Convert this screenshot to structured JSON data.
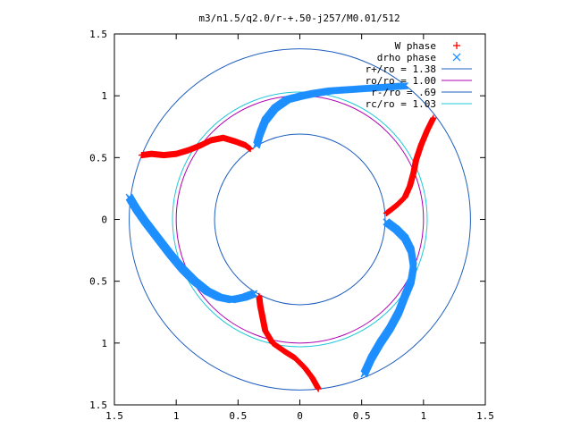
{
  "chart_data": {
    "type": "scatter",
    "title": "m3/n1.5/q2.0/r-+.50-j257/M0.01/512",
    "xlabel": "",
    "ylabel": "",
    "xlim": [
      -1.5,
      1.5
    ],
    "ylim": [
      -1.5,
      1.5
    ],
    "x_ticks": [
      -1.5,
      -1,
      -0.5,
      0,
      0.5,
      1,
      1.5
    ],
    "y_ticks": [
      -1.5,
      -1,
      -0.5,
      0,
      0.5,
      1,
      1.5
    ],
    "x_tick_labels": [
      "1.5",
      "1",
      "0.5",
      "0",
      "0.5",
      "1",
      "1.5"
    ],
    "y_tick_labels": [
      "1.5",
      "1",
      "0.5",
      "0",
      "0.5",
      "1",
      "1.5"
    ],
    "grid": false,
    "legend_position": "top-right",
    "circles": [
      {
        "label": "r+/ro = 1.38",
        "radius": 1.38,
        "color": "#1f5fbf"
      },
      {
        "label": "ro/ro = 1.00",
        "radius": 1.0,
        "color": "#b000b0"
      },
      {
        "label": "r-/ro = .69",
        "radius": 0.69,
        "color": "#1f5fbf"
      },
      {
        "label": "rc/ro = 1.03",
        "radius": 1.03,
        "color": "#22c8d8"
      }
    ],
    "series": [
      {
        "name": "W phase",
        "marker": "+",
        "color": "#ff0000",
        "branches": [
          [
            [
              -1.28,
              0.52
            ],
            [
              -1.2,
              0.53
            ],
            [
              -1.1,
              0.52
            ],
            [
              -1.0,
              0.53
            ],
            [
              -0.9,
              0.56
            ],
            [
              -0.8,
              0.6
            ],
            [
              -0.72,
              0.64
            ],
            [
              -0.62,
              0.66
            ],
            [
              -0.52,
              0.63
            ],
            [
              -0.44,
              0.6
            ],
            [
              -0.4,
              0.57
            ]
          ],
          [
            [
              1.08,
              0.82
            ],
            [
              1.03,
              0.72
            ],
            [
              0.98,
              0.6
            ],
            [
              0.94,
              0.48
            ],
            [
              0.92,
              0.38
            ],
            [
              0.89,
              0.27
            ],
            [
              0.85,
              0.18
            ],
            [
              0.79,
              0.12
            ],
            [
              0.74,
              0.08
            ],
            [
              0.7,
              0.05
            ]
          ],
          [
            [
              0.15,
              -1.37
            ],
            [
              0.1,
              -1.28
            ],
            [
              0.04,
              -1.2
            ],
            [
              -0.04,
              -1.12
            ],
            [
              -0.12,
              -1.07
            ],
            [
              -0.22,
              -1.0
            ],
            [
              -0.28,
              -0.9
            ],
            [
              -0.3,
              -0.8
            ],
            [
              -0.32,
              -0.7
            ],
            [
              -0.33,
              -0.62
            ]
          ]
        ]
      },
      {
        "name": "drho phase",
        "marker": "x",
        "color": "#1e8fff",
        "branches": [
          [
            [
              0.85,
              1.08
            ],
            [
              0.7,
              1.07
            ],
            [
              0.55,
              1.06
            ],
            [
              0.4,
              1.05
            ],
            [
              0.25,
              1.04
            ],
            [
              0.12,
              1.02
            ],
            [
              0.02,
              1.0
            ],
            [
              -0.1,
              0.97
            ],
            [
              -0.2,
              0.9
            ],
            [
              -0.28,
              0.8
            ],
            [
              -0.32,
              0.7
            ],
            [
              -0.35,
              0.6
            ]
          ],
          [
            [
              -1.38,
              0.18
            ],
            [
              -1.32,
              0.08
            ],
            [
              -1.25,
              -0.02
            ],
            [
              -1.15,
              -0.15
            ],
            [
              -1.05,
              -0.28
            ],
            [
              -0.95,
              -0.4
            ],
            [
              -0.85,
              -0.5
            ],
            [
              -0.75,
              -0.58
            ],
            [
              -0.65,
              -0.63
            ],
            [
              -0.55,
              -0.65
            ],
            [
              -0.45,
              -0.63
            ],
            [
              -0.37,
              -0.6
            ]
          ],
          [
            [
              0.7,
              -0.02
            ],
            [
              0.78,
              -0.08
            ],
            [
              0.85,
              -0.15
            ],
            [
              0.9,
              -0.25
            ],
            [
              0.92,
              -0.38
            ],
            [
              0.9,
              -0.5
            ],
            [
              0.85,
              -0.62
            ],
            [
              0.8,
              -0.75
            ],
            [
              0.73,
              -0.88
            ],
            [
              0.65,
              -1.0
            ],
            [
              0.58,
              -1.12
            ],
            [
              0.52,
              -1.25
            ]
          ]
        ]
      }
    ]
  }
}
